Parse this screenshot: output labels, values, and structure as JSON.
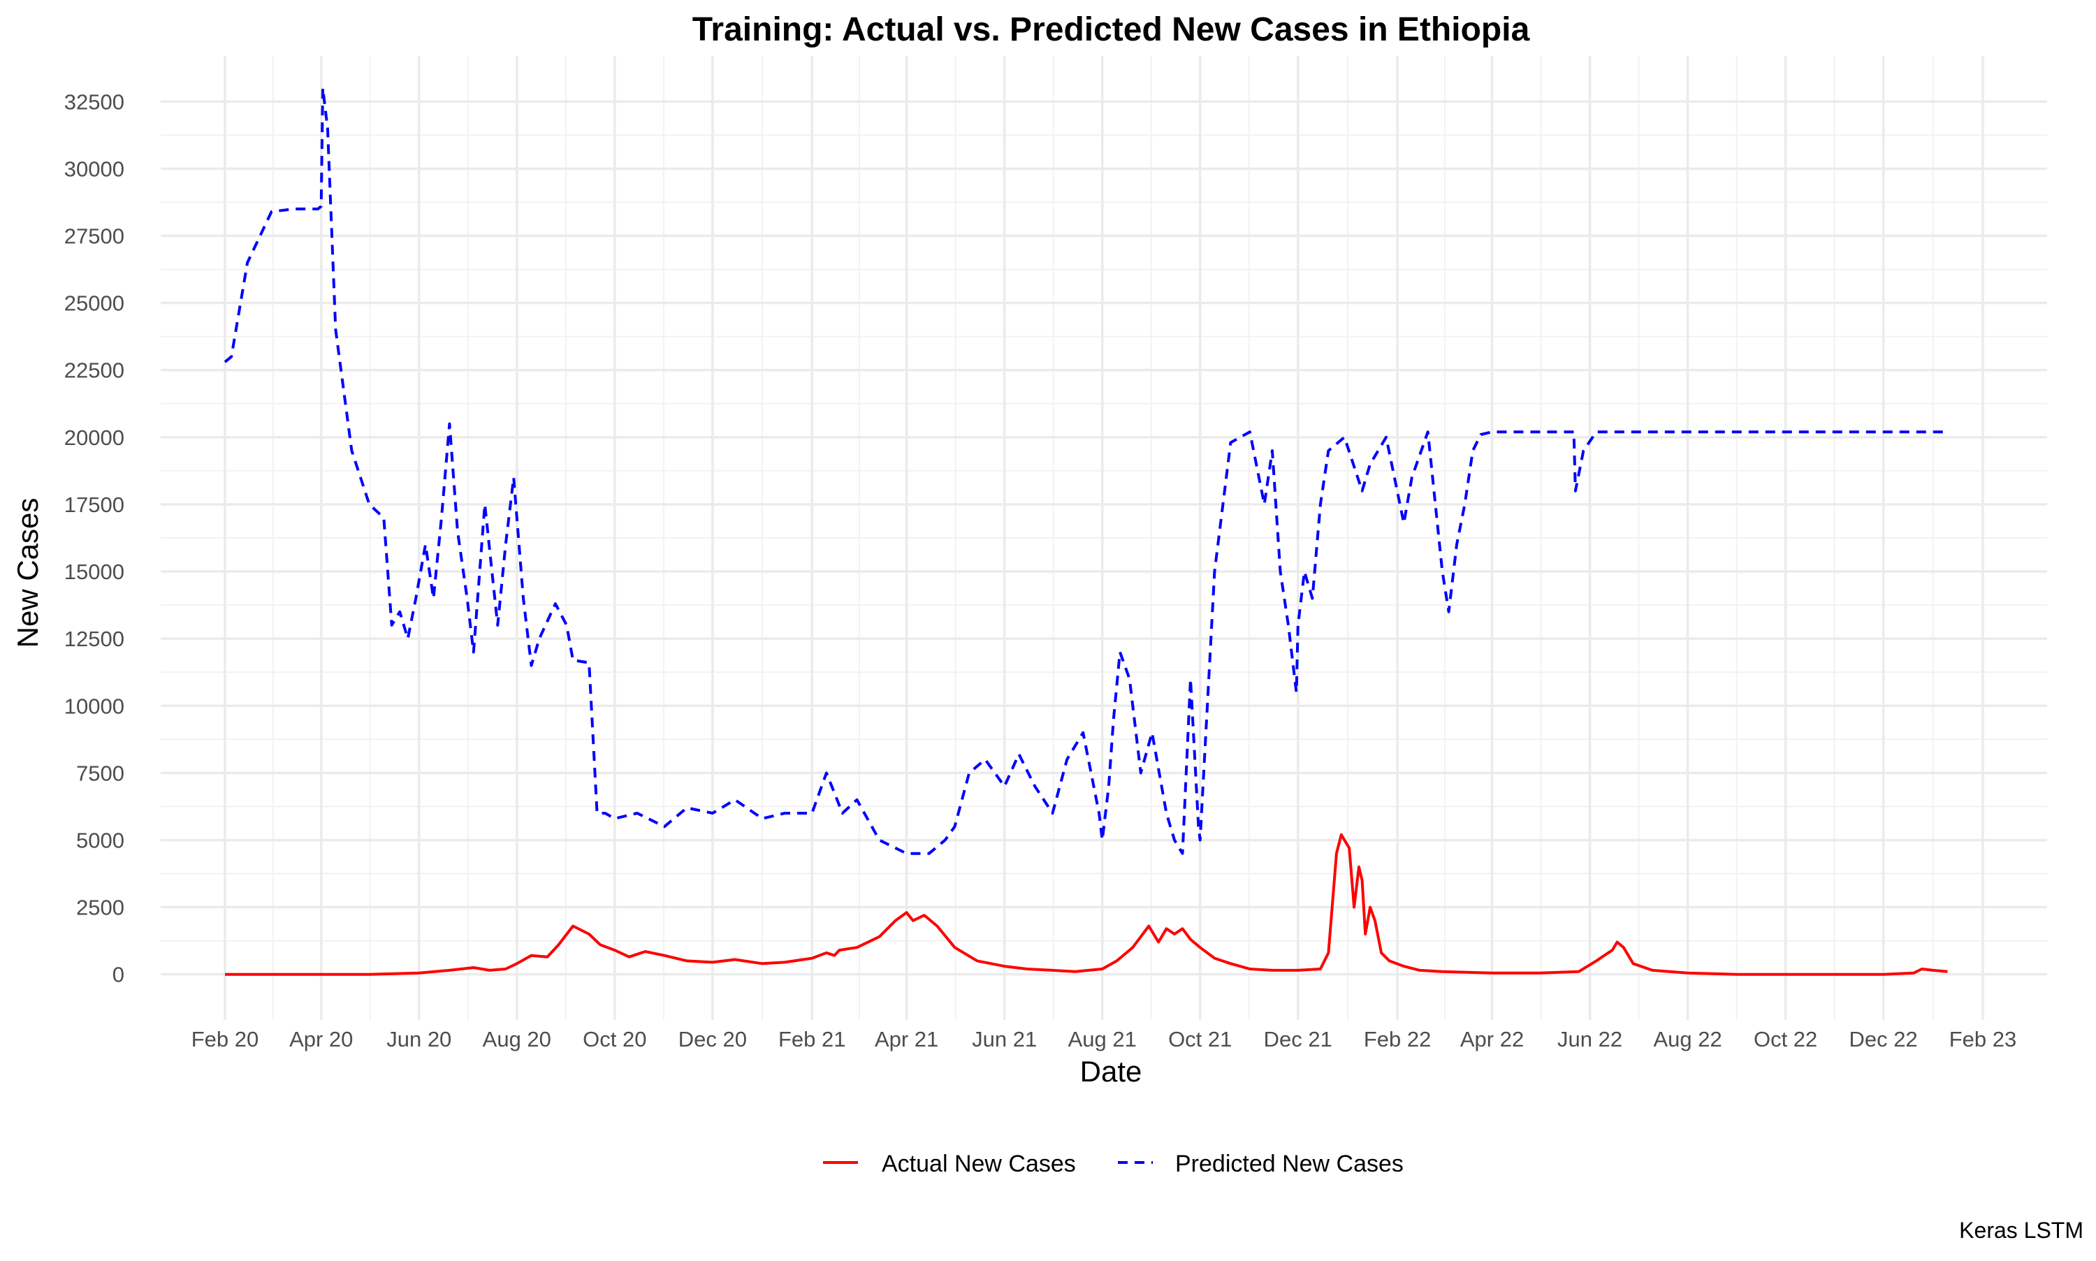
{
  "chart_data": {
    "type": "line",
    "title": "Training: Actual vs. Predicted New Cases in Ethiopia",
    "xlabel": "Date",
    "ylabel": "New Cases",
    "caption": "Keras LSTM",
    "grid": true,
    "legend_position": "bottom",
    "xlim": [
      "2020-02-01",
      "2023-02-01"
    ],
    "ylim": [
      -1700,
      34200
    ],
    "x_ticks": [
      {
        "date": "2020-02-01",
        "label": "Feb 20"
      },
      {
        "date": "2020-04-01",
        "label": "Apr 20"
      },
      {
        "date": "2020-06-01",
        "label": "Jun 20"
      },
      {
        "date": "2020-08-01",
        "label": "Aug 20"
      },
      {
        "date": "2020-10-01",
        "label": "Oct 20"
      },
      {
        "date": "2020-12-01",
        "label": "Dec 20"
      },
      {
        "date": "2021-02-01",
        "label": "Feb 21"
      },
      {
        "date": "2021-04-01",
        "label": "Apr 21"
      },
      {
        "date": "2021-06-01",
        "label": "Jun 21"
      },
      {
        "date": "2021-08-01",
        "label": "Aug 21"
      },
      {
        "date": "2021-10-01",
        "label": "Oct 21"
      },
      {
        "date": "2021-12-01",
        "label": "Dec 21"
      },
      {
        "date": "2022-02-01",
        "label": "Feb 22"
      },
      {
        "date": "2022-04-01",
        "label": "Apr 22"
      },
      {
        "date": "2022-06-01",
        "label": "Jun 22"
      },
      {
        "date": "2022-08-01",
        "label": "Aug 22"
      },
      {
        "date": "2022-10-01",
        "label": "Oct 22"
      },
      {
        "date": "2022-12-01",
        "label": "Dec 22"
      },
      {
        "date": "2023-02-01",
        "label": "Feb 23"
      }
    ],
    "y_ticks": [
      0,
      2500,
      5000,
      7500,
      10000,
      12500,
      15000,
      17500,
      20000,
      22500,
      25000,
      27500,
      30000,
      32500
    ],
    "series": [
      {
        "name": "Actual New Cases",
        "color": "#ff0000",
        "dash": "solid",
        "x": [
          "2020-02-01",
          "2020-03-15",
          "2020-05-01",
          "2020-06-01",
          "2020-06-20",
          "2020-07-05",
          "2020-07-15",
          "2020-07-25",
          "2020-08-01",
          "2020-08-10",
          "2020-08-20",
          "2020-08-27",
          "2020-09-05",
          "2020-09-15",
          "2020-09-22",
          "2020-10-01",
          "2020-10-10",
          "2020-10-20",
          "2020-11-01",
          "2020-11-15",
          "2020-12-01",
          "2020-12-15",
          "2021-01-01",
          "2021-01-15",
          "2021-02-01",
          "2021-02-10",
          "2021-02-15",
          "2021-02-18",
          "2021-03-01",
          "2021-03-15",
          "2021-03-25",
          "2021-04-01",
          "2021-04-05",
          "2021-04-12",
          "2021-04-20",
          "2021-05-01",
          "2021-05-15",
          "2021-06-01",
          "2021-06-15",
          "2021-07-01",
          "2021-07-15",
          "2021-08-01",
          "2021-08-10",
          "2021-08-20",
          "2021-08-25",
          "2021-08-30",
          "2021-09-05",
          "2021-09-10",
          "2021-09-15",
          "2021-09-20",
          "2021-09-25",
          "2021-10-01",
          "2021-10-10",
          "2021-10-20",
          "2021-11-01",
          "2021-11-15",
          "2021-12-01",
          "2021-12-15",
          "2021-12-20",
          "2021-12-25",
          "2021-12-28",
          "2022-01-02",
          "2022-01-05",
          "2022-01-08",
          "2022-01-10",
          "2022-01-12",
          "2022-01-15",
          "2022-01-18",
          "2022-01-22",
          "2022-01-27",
          "2022-02-05",
          "2022-02-15",
          "2022-03-01",
          "2022-04-01",
          "2022-05-01",
          "2022-05-25",
          "2022-06-05",
          "2022-06-10",
          "2022-06-15",
          "2022-06-18",
          "2022-06-22",
          "2022-06-28",
          "2022-07-10",
          "2022-08-01",
          "2022-09-01",
          "2022-10-01",
          "2022-11-01",
          "2022-12-01",
          "2022-12-20",
          "2022-12-25",
          "2023-01-01",
          "2023-01-10"
        ],
        "y": [
          0,
          0,
          0,
          50,
          150,
          250,
          150,
          200,
          400,
          700,
          650,
          1100,
          1800,
          1500,
          1100,
          900,
          650,
          850,
          700,
          500,
          450,
          550,
          400,
          450,
          600,
          800,
          700,
          900,
          1000,
          1400,
          2000,
          2300,
          2000,
          2200,
          1800,
          1000,
          500,
          300,
          200,
          150,
          100,
          200,
          500,
          1000,
          1400,
          1800,
          1200,
          1700,
          1500,
          1700,
          1300,
          1000,
          600,
          400,
          200,
          150,
          150,
          200,
          800,
          4500,
          5200,
          4700,
          2500,
          4000,
          3500,
          1500,
          2500,
          2000,
          800,
          500,
          300,
          150,
          100,
          50,
          50,
          100,
          500,
          700,
          900,
          1200,
          1000,
          400,
          150,
          50,
          0,
          0,
          0,
          0,
          50,
          200,
          150,
          100
        ]
      },
      {
        "name": "Predicted New Cases",
        "color": "#0000ff",
        "dash": "dashed",
        "x": [
          "2020-02-01",
          "2020-02-05",
          "2020-02-15",
          "2020-03-01",
          "2020-03-15",
          "2020-03-30",
          "2020-04-01",
          "2020-04-02",
          "2020-04-05",
          "2020-04-10",
          "2020-04-20",
          "2020-05-01",
          "2020-05-10",
          "2020-05-15",
          "2020-05-20",
          "2020-05-25",
          "2020-05-30",
          "2020-06-05",
          "2020-06-10",
          "2020-06-15",
          "2020-06-20",
          "2020-06-25",
          "2020-07-01",
          "2020-07-05",
          "2020-07-12",
          "2020-07-20",
          "2020-07-25",
          "2020-07-30",
          "2020-08-05",
          "2020-08-10",
          "2020-08-15",
          "2020-08-25",
          "2020-09-01",
          "2020-09-05",
          "2020-09-15",
          "2020-09-20",
          "2020-09-25",
          "2020-10-01",
          "2020-10-15",
          "2020-11-01",
          "2020-11-15",
          "2020-12-01",
          "2020-12-15",
          "2021-01-01",
          "2021-01-15",
          "2021-02-01",
          "2021-02-10",
          "2021-02-20",
          "2021-03-01",
          "2021-03-15",
          "2021-04-01",
          "2021-04-15",
          "2021-04-25",
          "2021-05-01",
          "2021-05-10",
          "2021-05-20",
          "2021-06-01",
          "2021-06-10",
          "2021-06-20",
          "2021-07-01",
          "2021-07-10",
          "2021-07-20",
          "2021-07-30",
          "2021-08-01",
          "2021-08-05",
          "2021-08-08",
          "2021-08-12",
          "2021-08-18",
          "2021-08-25",
          "2021-09-01",
          "2021-09-10",
          "2021-09-15",
          "2021-09-20",
          "2021-09-25",
          "2021-09-30",
          "2021-10-01",
          "2021-10-10",
          "2021-10-20",
          "2021-11-01",
          "2021-11-10",
          "2021-11-15",
          "2021-11-20",
          "2021-11-25",
          "2021-11-30",
          "2021-12-01",
          "2021-12-05",
          "2021-12-10",
          "2021-12-15",
          "2021-12-20",
          "2021-12-30",
          "2022-01-10",
          "2022-01-15",
          "2022-01-25",
          "2022-02-05",
          "2022-02-10",
          "2022-02-20",
          "2022-03-01",
          "2022-03-05",
          "2022-03-10",
          "2022-03-15",
          "2022-03-20",
          "2022-03-25",
          "2022-04-01",
          "2022-04-15",
          "2022-05-01",
          "2022-05-22",
          "2022-05-23",
          "2022-05-28",
          "2022-06-05",
          "2022-06-15",
          "2022-08-01",
          "2022-10-01",
          "2022-12-01",
          "2023-01-10"
        ],
        "y": [
          22800,
          23000,
          26500,
          28400,
          28500,
          28500,
          28600,
          33000,
          31500,
          24000,
          19500,
          17500,
          17000,
          13000,
          13500,
          12500,
          14000,
          16000,
          14000,
          17000,
          20500,
          16500,
          14000,
          12000,
          17500,
          13000,
          16000,
          18500,
          14000,
          11500,
          12500,
          13800,
          13000,
          11700,
          11600,
          6000,
          6000,
          5800,
          6000,
          5500,
          6200,
          6000,
          6500,
          5800,
          6000,
          6000,
          7500,
          6000,
          6500,
          5000,
          4500,
          4500,
          5000,
          5500,
          7500,
          8000,
          7000,
          8200,
          7000,
          6000,
          8000,
          9000,
          6000,
          5000,
          7000,
          9500,
          12000,
          11000,
          7500,
          9000,
          6000,
          5000,
          4500,
          11000,
          5500,
          5000,
          15000,
          19800,
          20200,
          17500,
          19500,
          15000,
          13000,
          10500,
          13000,
          15000,
          14000,
          17500,
          19500,
          20000,
          18000,
          19000,
          20000,
          16800,
          18500,
          20200,
          15000,
          13500,
          16000,
          17500,
          19500,
          20100,
          20200,
          20200,
          20200,
          20200,
          18000,
          19500,
          20200,
          20200,
          20200,
          20200,
          20200,
          20200
        ]
      }
    ]
  }
}
